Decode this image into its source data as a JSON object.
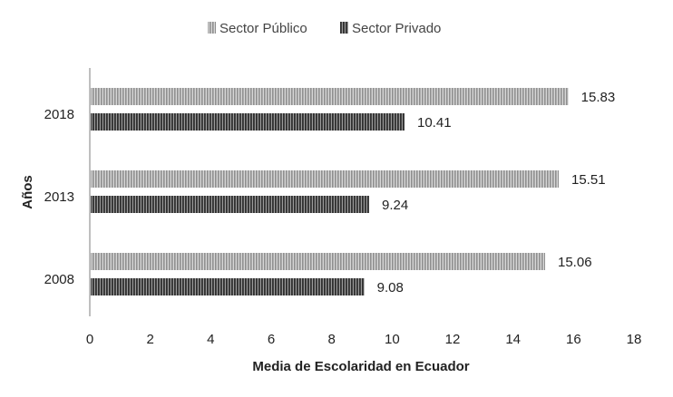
{
  "chart_data": {
    "type": "bar",
    "orientation": "horizontal",
    "categories": [
      "2018",
      "2013",
      "2008"
    ],
    "series": [
      {
        "name": "Sector Público",
        "values": [
          15.83,
          15.51,
          15.06
        ]
      },
      {
        "name": "Sector Privado",
        "values": [
          10.41,
          9.24,
          9.08
        ]
      }
    ],
    "data_labels": [
      [
        "15.83",
        "15.51",
        "15.06"
      ],
      [
        "10.41",
        "9.24",
        "9.08"
      ]
    ],
    "xlabel": "Media de Escolaridad en Ecuador",
    "ylabel": "Años",
    "xlim": [
      0,
      18
    ],
    "xticks": [
      "0",
      "2",
      "4",
      "6",
      "8",
      "10",
      "12",
      "14",
      "16",
      "18"
    ],
    "grid": false,
    "legend_position": "top-center",
    "colors": {
      "publico": "#b8b8b8",
      "privado": "#4a4a4a",
      "axis": "#bfbfbf"
    }
  }
}
